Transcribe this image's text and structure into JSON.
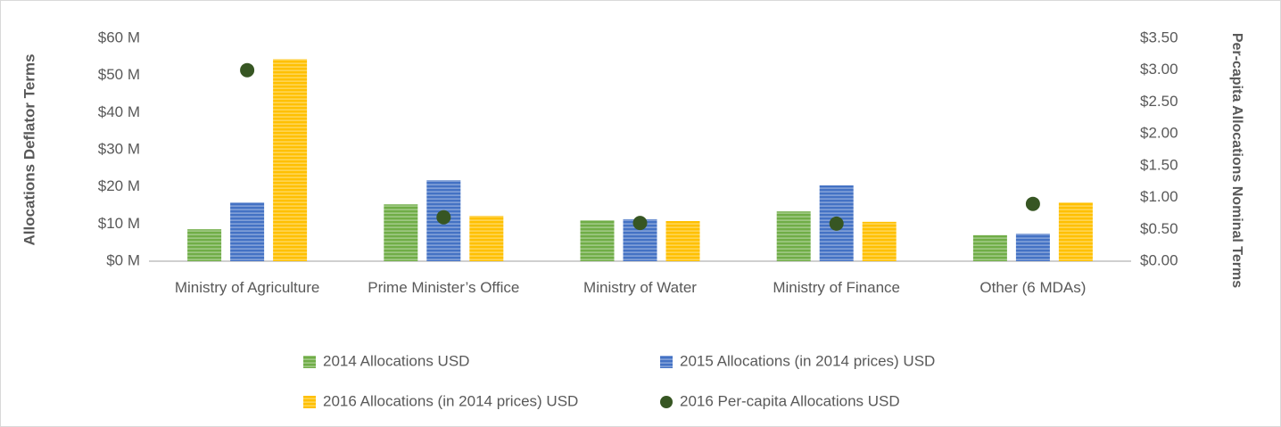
{
  "chart_data": {
    "type": "bar",
    "categories": [
      "Ministry of Agriculture",
      "Prime Minister’s Office",
      "Ministry of Water",
      "Ministry of Finance",
      "Other (6 MDAs)"
    ],
    "y_label": "Allocations Deflator Terms",
    "y2_label": "Per-capita Allocations Nominal Terms",
    "series": [
      {
        "name": "2014 Allocations USD",
        "type": "bar",
        "color": "#70ad47",
        "values": [
          8.6,
          15.3,
          11.0,
          13.4,
          7.0
        ]
      },
      {
        "name": "2015 Allocations (in 2014 prices) USD",
        "type": "bar",
        "color": "#4472c4",
        "values": [
          15.8,
          21.8,
          11.3,
          20.4,
          7.4
        ]
      },
      {
        "name": "2016 Allocations (in 2014 prices) USD",
        "type": "bar",
        "color": "#ffc000",
        "values": [
          54.4,
          12.2,
          10.8,
          10.6,
          15.8
        ]
      },
      {
        "name": "2016 Per-capita Allocations USD",
        "type": "scatter",
        "axis": "y2",
        "color": "#375623",
        "values": [
          3.0,
          0.69,
          0.6,
          0.59,
          0.9
        ]
      }
    ],
    "ylim": [
      0,
      60
    ],
    "yticks": [
      {
        "value": 0,
        "label": "$0 M"
      },
      {
        "value": 10,
        "label": "$10 M"
      },
      {
        "value": 20,
        "label": "$20 M"
      },
      {
        "value": 30,
        "label": "$30 M"
      },
      {
        "value": 40,
        "label": "$40 M"
      },
      {
        "value": 50,
        "label": "$50 M"
      },
      {
        "value": 60,
        "label": "$60 M"
      }
    ],
    "y2lim": [
      0,
      3.5
    ],
    "y2ticks": [
      {
        "value": 0,
        "label": "$0.00"
      },
      {
        "value": 0.5,
        "label": "$0.50"
      },
      {
        "value": 1,
        "label": "$1.00"
      },
      {
        "value": 1.5,
        "label": "$1.50"
      },
      {
        "value": 2,
        "label": "$2.00"
      },
      {
        "value": 2.5,
        "label": "$2.50"
      },
      {
        "value": 3,
        "label": "$3.00"
      },
      {
        "value": 3.5,
        "label": "$3.50"
      }
    ],
    "grid": false
  }
}
